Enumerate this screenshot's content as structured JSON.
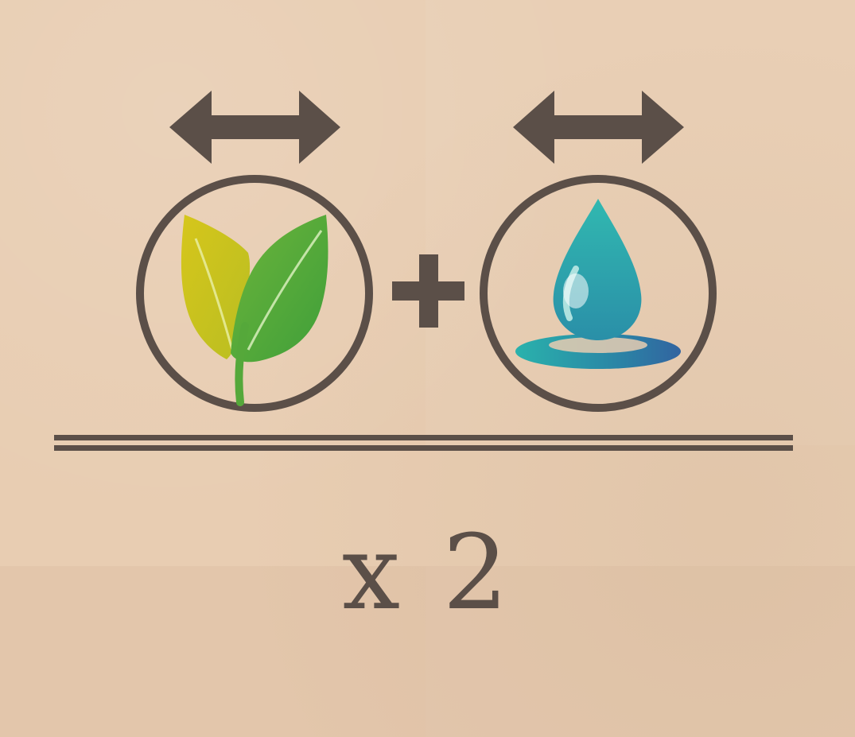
{
  "card": {
    "multiplier_text": "x 2"
  },
  "icons": {
    "left_arrow": "double-arrow-icon",
    "right_arrow": "double-arrow-icon",
    "left_symbol": "leaf-icon",
    "right_symbol": "water-drop-icon",
    "operator": "plus-icon"
  },
  "colors": {
    "ink": "#5b4f48",
    "background": "#e8cdb2",
    "leaf_yellow": "#cfc21d",
    "leaf_green": "#4aa83a",
    "water_teal": "#2aa8ad",
    "water_blue": "#2d6fa0"
  }
}
